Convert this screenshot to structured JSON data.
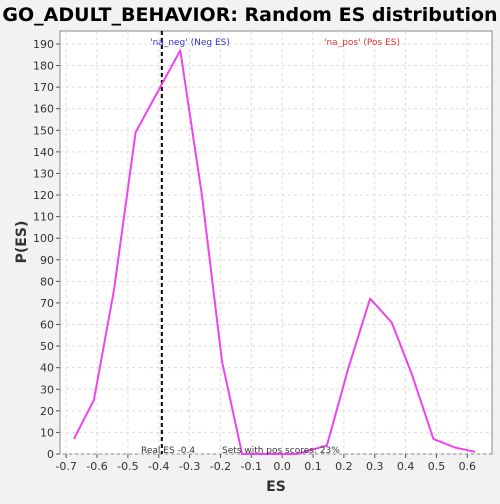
{
  "chart_data": {
    "type": "line",
    "title": "GO_ADULT_BEHAVIOR: Random ES distribution",
    "xlabel": "ES",
    "ylabel": "P(ES)",
    "xlim": [
      -0.72,
      0.68
    ],
    "ylim": [
      0,
      196
    ],
    "x_ticks": [
      "-0.7",
      "-0.6",
      "-0.5",
      "-0.4",
      "-0.3",
      "-0.2",
      "-0.1",
      "0.0",
      "0.1",
      "0.2",
      "0.3",
      "0.4",
      "0.5",
      "0.6"
    ],
    "x_tick_values": [
      -0.7,
      -0.6,
      -0.5,
      -0.4,
      -0.3,
      -0.2,
      -0.1,
      0.0,
      0.1,
      0.2,
      0.3,
      0.4,
      0.5,
      0.6
    ],
    "y_ticks": [
      0,
      10,
      20,
      30,
      40,
      50,
      60,
      70,
      80,
      90,
      100,
      110,
      120,
      130,
      140,
      150,
      160,
      170,
      180,
      190
    ],
    "grid": true,
    "series": [
      {
        "color": "#ee44ee",
        "points": [
          [
            -0.675,
            7
          ],
          [
            -0.61,
            25
          ],
          [
            -0.545,
            76
          ],
          [
            -0.475,
            149
          ],
          [
            -0.33,
            187
          ],
          [
            -0.26,
            120
          ],
          [
            -0.195,
            43
          ],
          [
            -0.13,
            0
          ],
          [
            0.0,
            0
          ],
          [
            0.05,
            0
          ],
          [
            0.145,
            4
          ],
          [
            0.215,
            40
          ],
          [
            0.285,
            72
          ],
          [
            0.355,
            61
          ],
          [
            0.42,
            37
          ],
          [
            0.49,
            7
          ],
          [
            0.56,
            3
          ],
          [
            0.625,
            1
          ]
        ]
      }
    ],
    "vline": {
      "x": -0.39,
      "label": "Real ES -0.4",
      "style": "dashed",
      "color": "#000000"
    },
    "annotations": {
      "neg_label": "'na_neg' (Neg ES)",
      "neg_color": "#3333dd",
      "pos_label": "'na_pos' (Pos ES)",
      "pos_color": "#dd3333",
      "pos_scores_label": "Sets with pos scores: 23%"
    }
  }
}
